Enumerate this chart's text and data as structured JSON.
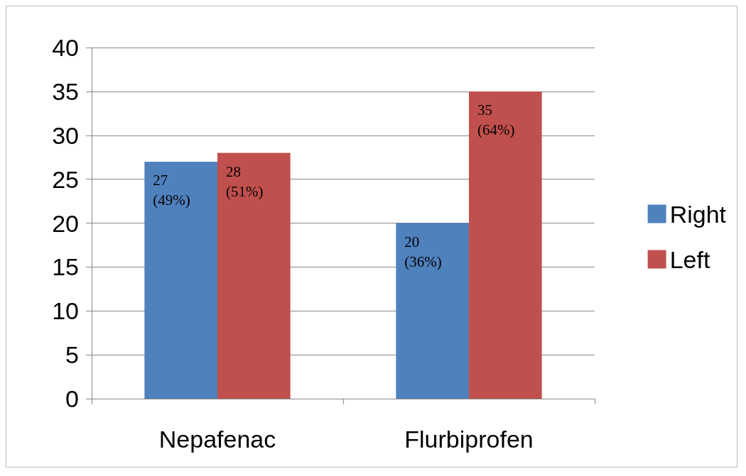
{
  "chart_data": {
    "type": "bar",
    "categories": [
      "Nepafenac",
      "Flurbiprofen"
    ],
    "series": [
      {
        "name": "Right",
        "color": "#4f81bd",
        "values": [
          27,
          20
        ],
        "value_labels": [
          "27\n(49%)",
          "20\n(36%)"
        ]
      },
      {
        "name": "Left",
        "color": "#c0504d",
        "values": [
          28,
          35
        ],
        "value_labels": [
          "28\n(51%)",
          "35\n(64%)"
        ]
      }
    ],
    "ylim": [
      0,
      40
    ],
    "yticks": [
      0,
      5,
      10,
      15,
      20,
      25,
      30,
      35,
      40
    ],
    "grid": "y",
    "legend": "right"
  }
}
